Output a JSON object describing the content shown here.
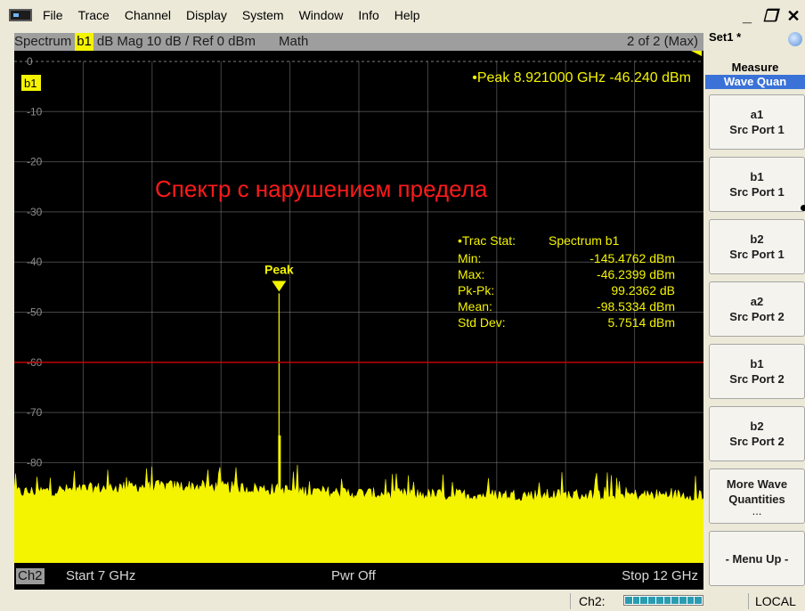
{
  "menu": {
    "items": [
      "File",
      "Trace",
      "Channel",
      "Display",
      "System",
      "Window",
      "Info",
      "Help"
    ],
    "window_controls": {
      "minimize": "_",
      "restore": "ƀ",
      "close": "×"
    }
  },
  "trace_header": {
    "name": "Spectrum",
    "trace": "b1",
    "format": "dB Mag",
    "scale": "10 dB /",
    "reference": "Ref 0 dBm",
    "math": "Math",
    "count": "2 of 2 (Max)"
  },
  "plot": {
    "trace_label": "b1",
    "marker_readout": "•Peak  8.921000 GHz  -46.240 dBm",
    "marker_label": "Peak",
    "overlay_title": "Спектр с нарушением предела",
    "stats": {
      "title_label": "•Trac Stat:",
      "title_value": "Spectrum  b1",
      "rows": [
        {
          "label": "Min:",
          "value": "-145.4762 dBm"
        },
        {
          "label": "Max:",
          "value": "-46.2399 dBm"
        },
        {
          "label": "Pk-Pk:",
          "value": "99.2362 dB"
        },
        {
          "label": "Mean:",
          "value": "-98.5334 dBm"
        },
        {
          "label": "Std Dev:",
          "value": "5.7514 dBm"
        }
      ]
    },
    "y_ticks": [
      "0",
      "-10",
      "-20",
      "-30",
      "-40",
      "-50",
      "-60",
      "-70",
      "-80"
    ]
  },
  "chart_data": {
    "type": "line",
    "x_unit": "GHz",
    "y_unit": "dBm",
    "xlim": [
      7,
      12
    ],
    "ylim": [
      -100,
      0
    ],
    "y_divisions": 10,
    "x_divisions": 10,
    "limit_line_dbm": -60,
    "noise_floor_dbm": -87,
    "peak": {
      "x": 8.921,
      "y": -46.24
    },
    "trace_color": "#f4f400",
    "limit_color": "#c80000",
    "grid_color": "#9a9a9a"
  },
  "bottom_bar": {
    "channel": "Ch2",
    "start": "Start  7 GHz",
    "power": "Pwr  Off",
    "stop": "Stop  12 GHz"
  },
  "status_bar": {
    "channel": "Ch2:",
    "mode": "LOCAL"
  },
  "softkeys": {
    "set_title": "Set1 *",
    "measure_title": "Measure",
    "measure_subtitle": "Wave Quan",
    "buttons": [
      {
        "line1": "a1",
        "line2": "Src Port 1"
      },
      {
        "line1": "b1",
        "line2": "Src Port 1"
      },
      {
        "line1": "b2",
        "line2": "Src Port 1"
      },
      {
        "line1": "a2",
        "line2": "Src Port 2"
      },
      {
        "line1": "b1",
        "line2": "Src Port 2"
      },
      {
        "line1": "b2",
        "line2": "Src Port 2"
      }
    ],
    "more": {
      "line1": "More Wave",
      "line2": "Quantities",
      "line3": "..."
    },
    "menu_up": "- Menu Up -"
  }
}
